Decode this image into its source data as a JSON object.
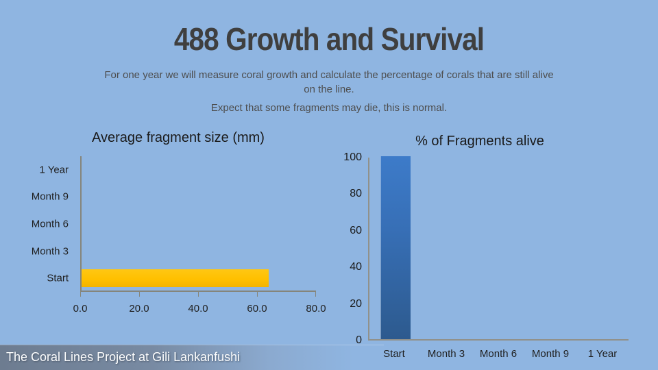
{
  "slide": {
    "title": "488 Growth and Survival",
    "subtitle_line1": "For one year we will measure coral growth and calculate the percentage of corals that are still alive on the line.",
    "subtitle_line2": "Expect that some fragments may die, this is normal.",
    "footer": "The Coral Lines Project at Gili Lankanfushi"
  },
  "colors": {
    "background": "#8FB5E1",
    "title_text": "#3F3F3F",
    "subtitle_text": "#4D4D4D",
    "axis_line": "#85857B",
    "tick_label_text": "#1F1F1F",
    "orange_bar": "#FFC000",
    "blue_bar_top": "#3D7BC9",
    "blue_bar_bottom": "#2D5A8E",
    "footer_text": "#FFFFFF",
    "footer_band": "#6A7789"
  },
  "chart_data": [
    {
      "type": "bar",
      "orientation": "horizontal",
      "title": "Average fragment size (mm)",
      "categories": [
        "1 Year",
        "Month 9",
        "Month 6",
        "Month 3",
        "Start"
      ],
      "values": [
        null,
        null,
        null,
        null,
        63.5
      ],
      "xlim": [
        0,
        80
      ],
      "x_tick_labels": [
        "0.0",
        "20.0",
        "40.0",
        "60.0",
        "80.0"
      ],
      "bar_color": "#FFC000",
      "grid": false,
      "legend": false
    },
    {
      "type": "bar",
      "orientation": "vertical",
      "title": "% of Fragments alive",
      "categories": [
        "Start",
        "Month 3",
        "Month 6",
        "Month 9",
        "1 Year"
      ],
      "values": [
        100,
        null,
        null,
        null,
        null
      ],
      "ylim": [
        0,
        100
      ],
      "y_tick_labels": [
        "100",
        "80",
        "60",
        "40",
        "20",
        "0"
      ],
      "bar_color": "#3D7BC9",
      "grid": false,
      "legend": false
    }
  ]
}
